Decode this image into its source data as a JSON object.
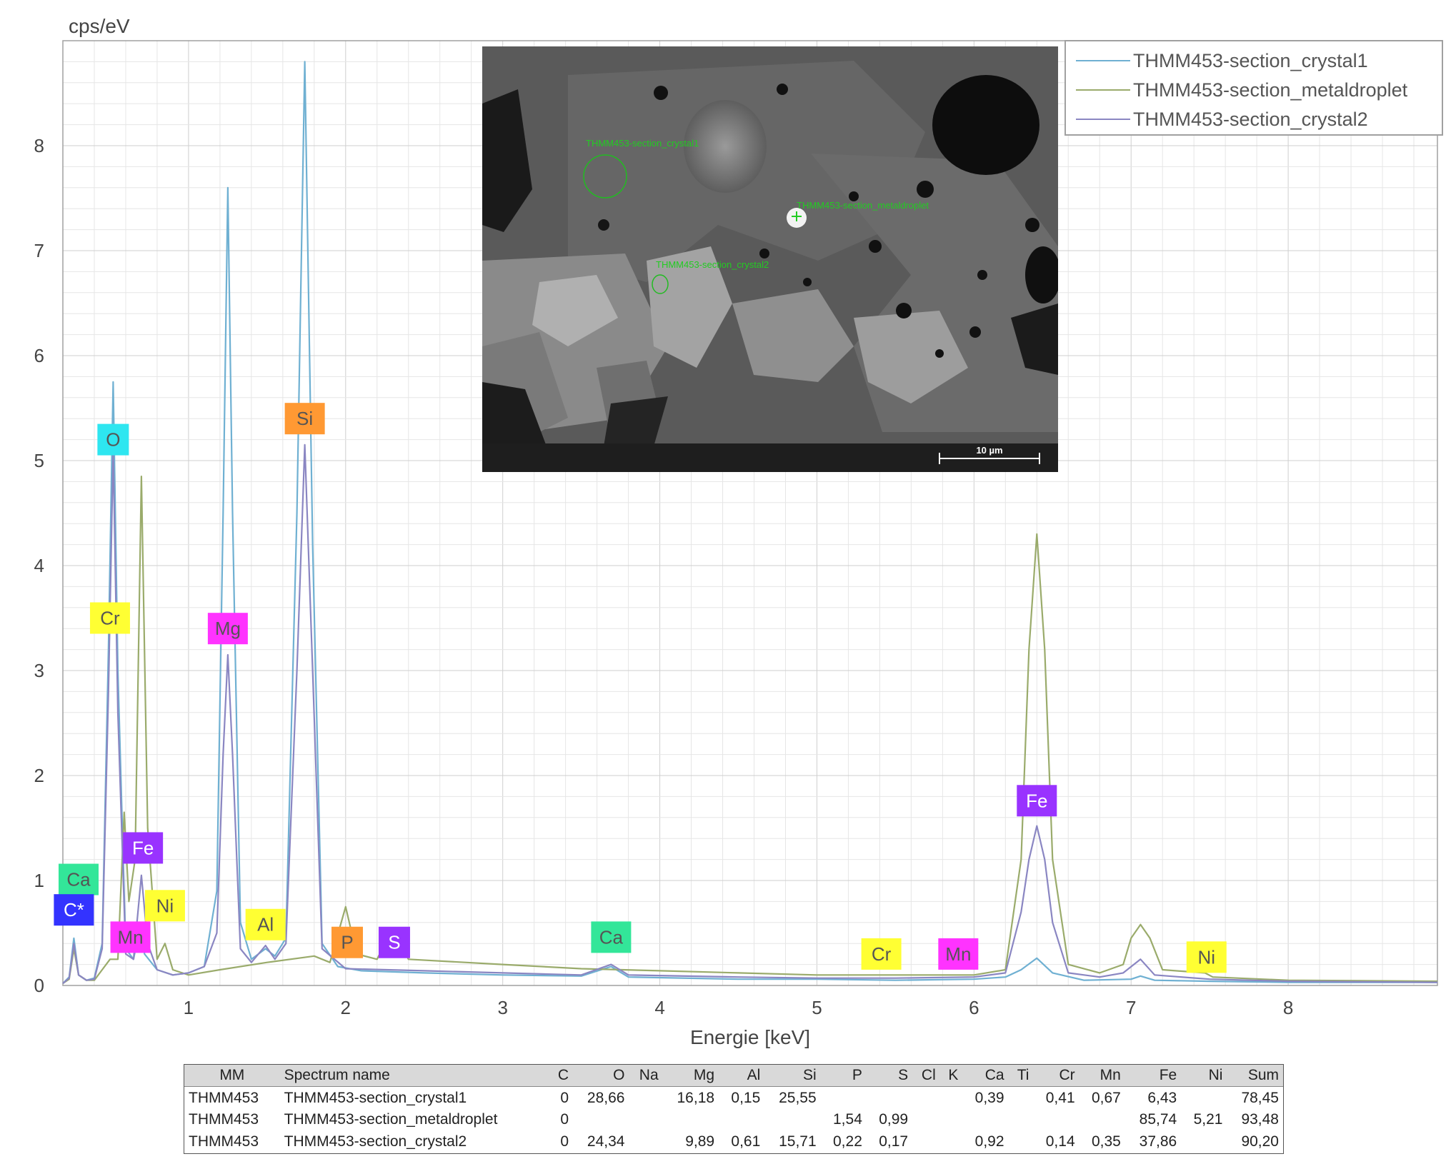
{
  "chart_data": {
    "type": "line",
    "xlabel": "Energie [keV]",
    "ylabel": "cps/eV",
    "xlim": [
      0.2,
      8.95
    ],
    "ylim": [
      0,
      9
    ],
    "x_ticks": [
      1,
      2,
      3,
      4,
      5,
      6,
      7,
      8
    ],
    "y_ticks": [
      0,
      1,
      2,
      3,
      4,
      5,
      6,
      7,
      8
    ],
    "grid": true,
    "legend_position": "top-right",
    "series": [
      {
        "name": "THMM453-section_crystal1",
        "color": "#6fb0d2",
        "points": [
          [
            0.2,
            0.02
          ],
          [
            0.24,
            0.08
          ],
          [
            0.27,
            0.45
          ],
          [
            0.3,
            0.1
          ],
          [
            0.35,
            0.05
          ],
          [
            0.4,
            0.07
          ],
          [
            0.45,
            0.4
          ],
          [
            0.49,
            3.2
          ],
          [
            0.52,
            5.75
          ],
          [
            0.55,
            3.0
          ],
          [
            0.6,
            0.35
          ],
          [
            0.65,
            0.25
          ],
          [
            0.69,
            0.55
          ],
          [
            0.72,
            0.3
          ],
          [
            0.8,
            0.15
          ],
          [
            0.9,
            0.1
          ],
          [
            1.0,
            0.12
          ],
          [
            1.1,
            0.18
          ],
          [
            1.18,
            0.9
          ],
          [
            1.22,
            4.5
          ],
          [
            1.25,
            7.6
          ],
          [
            1.28,
            4.5
          ],
          [
            1.33,
            0.6
          ],
          [
            1.4,
            0.25
          ],
          [
            1.49,
            0.35
          ],
          [
            1.55,
            0.28
          ],
          [
            1.62,
            0.45
          ],
          [
            1.69,
            4.5
          ],
          [
            1.74,
            8.8
          ],
          [
            1.79,
            4.2
          ],
          [
            1.85,
            0.4
          ],
          [
            1.95,
            0.18
          ],
          [
            2.1,
            0.14
          ],
          [
            2.5,
            0.12
          ],
          [
            3.0,
            0.1
          ],
          [
            3.5,
            0.09
          ],
          [
            3.69,
            0.18
          ],
          [
            3.8,
            0.08
          ],
          [
            4.5,
            0.06
          ],
          [
            5.0,
            0.06
          ],
          [
            5.5,
            0.05
          ],
          [
            6.0,
            0.06
          ],
          [
            6.2,
            0.08
          ],
          [
            6.3,
            0.15
          ],
          [
            6.4,
            0.26
          ],
          [
            6.5,
            0.12
          ],
          [
            6.7,
            0.05
          ],
          [
            7.0,
            0.06
          ],
          [
            7.06,
            0.09
          ],
          [
            7.15,
            0.05
          ],
          [
            7.5,
            0.04
          ],
          [
            8.0,
            0.03
          ],
          [
            8.95,
            0.03
          ]
        ]
      },
      {
        "name": "THMM453-section_metaldroplet",
        "color": "#9aab6b",
        "points": [
          [
            0.2,
            0.02
          ],
          [
            0.24,
            0.06
          ],
          [
            0.27,
            0.35
          ],
          [
            0.3,
            0.1
          ],
          [
            0.35,
            0.05
          ],
          [
            0.4,
            0.05
          ],
          [
            0.45,
            0.15
          ],
          [
            0.5,
            0.25
          ],
          [
            0.55,
            0.25
          ],
          [
            0.59,
            1.65
          ],
          [
            0.62,
            0.8
          ],
          [
            0.66,
            1.2
          ],
          [
            0.7,
            4.85
          ],
          [
            0.74,
            1.5
          ],
          [
            0.8,
            0.25
          ],
          [
            0.85,
            0.4
          ],
          [
            0.9,
            0.15
          ],
          [
            1.0,
            0.1
          ],
          [
            1.2,
            0.15
          ],
          [
            1.5,
            0.22
          ],
          [
            1.8,
            0.28
          ],
          [
            1.9,
            0.22
          ],
          [
            2.0,
            0.75
          ],
          [
            2.07,
            0.3
          ],
          [
            2.2,
            0.25
          ],
          [
            2.3,
            0.55
          ],
          [
            2.4,
            0.25
          ],
          [
            3.0,
            0.2
          ],
          [
            3.5,
            0.16
          ],
          [
            4.0,
            0.14
          ],
          [
            4.5,
            0.12
          ],
          [
            5.0,
            0.1
          ],
          [
            5.5,
            0.1
          ],
          [
            6.0,
            0.1
          ],
          [
            6.2,
            0.15
          ],
          [
            6.3,
            1.2
          ],
          [
            6.35,
            3.2
          ],
          [
            6.4,
            4.3
          ],
          [
            6.45,
            3.2
          ],
          [
            6.5,
            1.2
          ],
          [
            6.6,
            0.2
          ],
          [
            6.8,
            0.12
          ],
          [
            6.95,
            0.2
          ],
          [
            7.0,
            0.45
          ],
          [
            7.06,
            0.58
          ],
          [
            7.12,
            0.45
          ],
          [
            7.2,
            0.15
          ],
          [
            7.47,
            0.12
          ],
          [
            7.52,
            0.08
          ],
          [
            8.0,
            0.05
          ],
          [
            8.95,
            0.04
          ]
        ]
      },
      {
        "name": "THMM453-section_crystal2",
        "color": "#8a86c2",
        "points": [
          [
            0.2,
            0.02
          ],
          [
            0.24,
            0.07
          ],
          [
            0.27,
            0.4
          ],
          [
            0.3,
            0.1
          ],
          [
            0.35,
            0.05
          ],
          [
            0.4,
            0.06
          ],
          [
            0.45,
            0.35
          ],
          [
            0.49,
            2.8
          ],
          [
            0.52,
            5.1
          ],
          [
            0.55,
            2.6
          ],
          [
            0.6,
            0.3
          ],
          [
            0.65,
            0.25
          ],
          [
            0.7,
            1.05
          ],
          [
            0.74,
            0.4
          ],
          [
            0.8,
            0.15
          ],
          [
            0.9,
            0.1
          ],
          [
            1.0,
            0.12
          ],
          [
            1.1,
            0.18
          ],
          [
            1.18,
            0.5
          ],
          [
            1.22,
            2.2
          ],
          [
            1.25,
            3.15
          ],
          [
            1.28,
            2.2
          ],
          [
            1.33,
            0.35
          ],
          [
            1.4,
            0.22
          ],
          [
            1.49,
            0.38
          ],
          [
            1.55,
            0.25
          ],
          [
            1.62,
            0.4
          ],
          [
            1.69,
            3.0
          ],
          [
            1.74,
            5.15
          ],
          [
            1.79,
            3.0
          ],
          [
            1.85,
            0.35
          ],
          [
            2.0,
            0.16
          ],
          [
            2.5,
            0.14
          ],
          [
            3.0,
            0.12
          ],
          [
            3.5,
            0.1
          ],
          [
            3.69,
            0.2
          ],
          [
            3.8,
            0.1
          ],
          [
            4.5,
            0.08
          ],
          [
            5.0,
            0.07
          ],
          [
            5.5,
            0.07
          ],
          [
            6.0,
            0.08
          ],
          [
            6.2,
            0.12
          ],
          [
            6.3,
            0.7
          ],
          [
            6.35,
            1.2
          ],
          [
            6.4,
            1.52
          ],
          [
            6.45,
            1.2
          ],
          [
            6.5,
            0.6
          ],
          [
            6.6,
            0.12
          ],
          [
            6.8,
            0.08
          ],
          [
            6.95,
            0.12
          ],
          [
            7.06,
            0.25
          ],
          [
            7.15,
            0.1
          ],
          [
            7.5,
            0.06
          ],
          [
            8.0,
            0.04
          ],
          [
            8.95,
            0.03
          ]
        ]
      }
    ],
    "element_markers": [
      {
        "label": "O",
        "x": 0.52,
        "y": 5.2,
        "color": "#2ee6f0"
      },
      {
        "label": "Cr",
        "x": 0.5,
        "y": 3.5,
        "color": "#ffff33"
      },
      {
        "label": "Mg",
        "x": 1.25,
        "y": 3.4,
        "color": "#ff33ff"
      },
      {
        "label": "Si",
        "x": 1.74,
        "y": 5.4,
        "color": "#ff9933"
      },
      {
        "label": "Fe",
        "x": 0.71,
        "y": 1.31,
        "color": "#9933ff"
      },
      {
        "label": "Ca",
        "x": 0.3,
        "y": 1.01,
        "color": "#33e699"
      },
      {
        "label": "C*",
        "x": 0.27,
        "y": 0.72,
        "color": "#3333ff"
      },
      {
        "label": "Ni",
        "x": 0.85,
        "y": 0.76,
        "color": "#ffff33"
      },
      {
        "label": "Mn",
        "x": 0.63,
        "y": 0.46,
        "color": "#ff33ff"
      },
      {
        "label": "Al",
        "x": 1.49,
        "y": 0.58,
        "color": "#ffff33"
      },
      {
        "label": "P",
        "x": 2.01,
        "y": 0.41,
        "color": "#ff9933"
      },
      {
        "label": "S",
        "x": 2.31,
        "y": 0.41,
        "color": "#9933ff"
      },
      {
        "label": "Ca",
        "x": 3.69,
        "y": 0.46,
        "color": "#33e699"
      },
      {
        "label": "Cr",
        "x": 5.41,
        "y": 0.3,
        "color": "#ffff33"
      },
      {
        "label": "Mn",
        "x": 5.9,
        "y": 0.3,
        "color": "#ff33ff"
      },
      {
        "label": "Fe",
        "x": 6.4,
        "y": 1.76,
        "color": "#9933ff"
      },
      {
        "label": "Ni",
        "x": 7.48,
        "y": 0.27,
        "color": "#ffff33"
      }
    ]
  },
  "inset": {
    "scale_label": "10 µm",
    "annotations": [
      {
        "label": "THMM453-section_crystal1"
      },
      {
        "label": "THMM453-section_metaldroplet"
      },
      {
        "label": "THMM453-section_crystal2"
      }
    ]
  },
  "table": {
    "headers": [
      "MM",
      "Spectrum name",
      "C",
      "O",
      "Na",
      "Mg",
      "Al",
      "Si",
      "P",
      "S",
      "Cl",
      "K",
      "Ca",
      "Ti",
      "Cr",
      "Mn",
      "Fe",
      "Ni",
      "Sum"
    ],
    "rows": [
      [
        "THMM453",
        "THMM453-section_crystal1",
        "0",
        "28,66",
        "",
        "16,18",
        "0,15",
        "25,55",
        "",
        "",
        "",
        "",
        "0,39",
        "",
        "0,41",
        "0,67",
        "6,43",
        "",
        "78,45"
      ],
      [
        "THMM453",
        "THMM453-section_metaldroplet",
        "0",
        "",
        "",
        "",
        "",
        "",
        "1,54",
        "0,99",
        "",
        "",
        "",
        "",
        "",
        "",
        "85,74",
        "5,21",
        "93,48"
      ],
      [
        "THMM453",
        "THMM453-section_crystal2",
        "0",
        "24,34",
        "",
        "9,89",
        "0,61",
        "15,71",
        "0,22",
        "0,17",
        "",
        "",
        "0,92",
        "",
        "0,14",
        "0,35",
        "37,86",
        "",
        "90,20"
      ]
    ]
  }
}
